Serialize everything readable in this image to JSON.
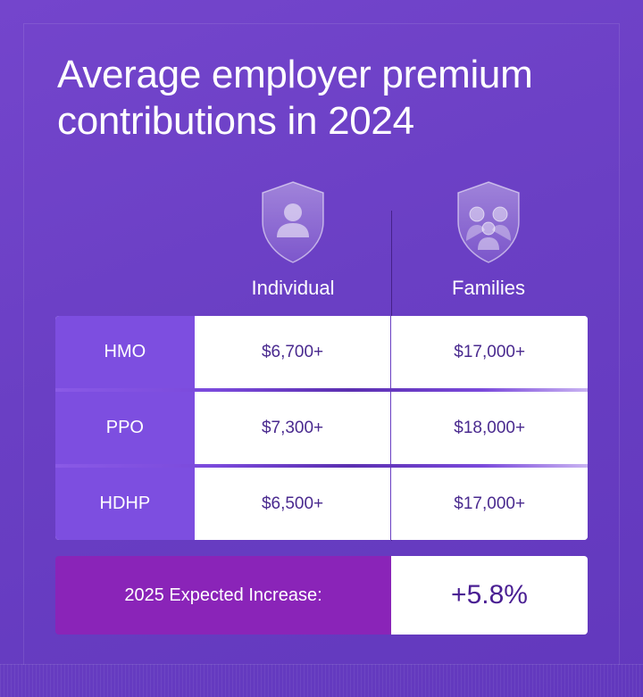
{
  "title_lines": [
    "Average employer premium",
    "contributions in 2024"
  ],
  "columns": {
    "individual": {
      "label": "Individual",
      "icon": "shield-person-icon"
    },
    "families": {
      "label": "Families",
      "icon": "shield-family-icon"
    }
  },
  "rows": [
    {
      "plan": "HMO",
      "individual": "$6,700+",
      "families": "$17,000+"
    },
    {
      "plan": "PPO",
      "individual": "$7,300+",
      "families": "$18,000+"
    },
    {
      "plan": "HDHP",
      "individual": "$6,500+",
      "families": "$17,000+"
    }
  ],
  "increase": {
    "label": "2025 Expected Increase:",
    "value": "+5.8%"
  },
  "colors": {
    "background": "#6a3fc2",
    "plan_label_bg": "#7d4ee0",
    "increase_label_bg": "#8a24b8",
    "value_text": "#4a2a8f"
  }
}
